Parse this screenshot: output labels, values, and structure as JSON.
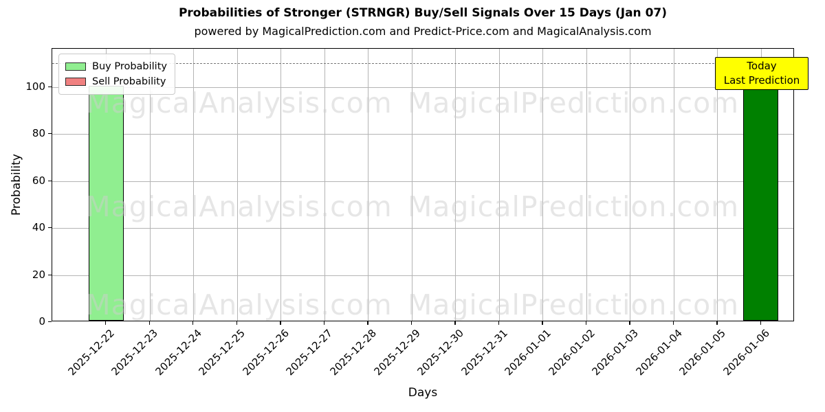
{
  "chart_data": {
    "type": "bar",
    "title": "Probabilities of Stronger (STRNGR) Buy/Sell Signals Over 15 Days (Jan 07)",
    "subtitle": "powered by MagicalPrediction.com and Predict-Price.com and MagicalAnalysis.com",
    "xlabel": "Days",
    "ylabel": "Probability",
    "ylim": [
      0,
      116
    ],
    "yticks": [
      0,
      20,
      40,
      60,
      80,
      100
    ],
    "grid": true,
    "legend_position": "upper-left",
    "categories": [
      "2025-12-22",
      "2025-12-23",
      "2025-12-24",
      "2025-12-25",
      "2025-12-26",
      "2025-12-27",
      "2025-12-28",
      "2025-12-29",
      "2025-12-30",
      "2025-12-31",
      "2026-01-01",
      "2026-01-02",
      "2026-01-03",
      "2026-01-04",
      "2026-01-05",
      "2026-01-06"
    ],
    "series": [
      {
        "name": "Buy Probability",
        "color": "#90EE90",
        "values": [
          100,
          0,
          0,
          0,
          0,
          0,
          0,
          0,
          0,
          0,
          0,
          0,
          0,
          0,
          0,
          100
        ]
      },
      {
        "name": "Sell Probability",
        "color": "#F08080",
        "values": [
          0,
          0,
          0,
          0,
          0,
          0,
          0,
          0,
          0,
          0,
          0,
          0,
          0,
          0,
          0,
          0
        ]
      }
    ],
    "highlight_last_bar_color": "#008000",
    "threshold_line": {
      "y": 110,
      "style": "dashed",
      "color": "#757575"
    },
    "annotation": {
      "text_lines": [
        "Today",
        "Last Prediction"
      ],
      "bg_color": "#ffff00",
      "attached_to": "2026-01-06"
    },
    "watermarks": {
      "left": "MagicalAnalysis.com",
      "right": "MagicalPrediction.com"
    }
  }
}
